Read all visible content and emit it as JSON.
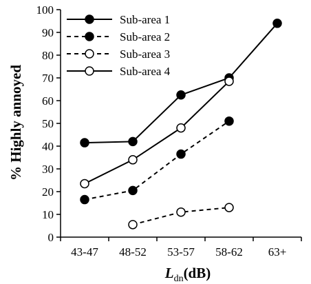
{
  "chart_data": {
    "type": "line",
    "categories": [
      "43-47",
      "48-52",
      "53-57",
      "58-62",
      "63+"
    ],
    "ylabel": "% Highly annoyed",
    "xlabel_main": "L",
    "xlabel_sub": "dn",
    "xlabel_unit": "(dB)",
    "ylim": [
      0,
      100
    ],
    "yticks": [
      0,
      10,
      20,
      30,
      40,
      50,
      60,
      70,
      80,
      90,
      100
    ],
    "grid": false,
    "legend_position": "top-left",
    "series": [
      {
        "name": "Sub-area 1",
        "line": "solid",
        "marker": "filled",
        "values": [
          41.5,
          42,
          62.5,
          70,
          94
        ]
      },
      {
        "name": "Sub-area 2",
        "line": "dashed",
        "marker": "filled",
        "values": [
          16.5,
          20.5,
          36.5,
          51,
          null
        ]
      },
      {
        "name": "Sub-area 3",
        "line": "dashed",
        "marker": "open",
        "values": [
          null,
          5.5,
          11,
          13,
          null
        ]
      },
      {
        "name": "Sub-area 4",
        "line": "solid",
        "marker": "open",
        "values": [
          23.5,
          34,
          48,
          68.5,
          null
        ]
      }
    ]
  }
}
